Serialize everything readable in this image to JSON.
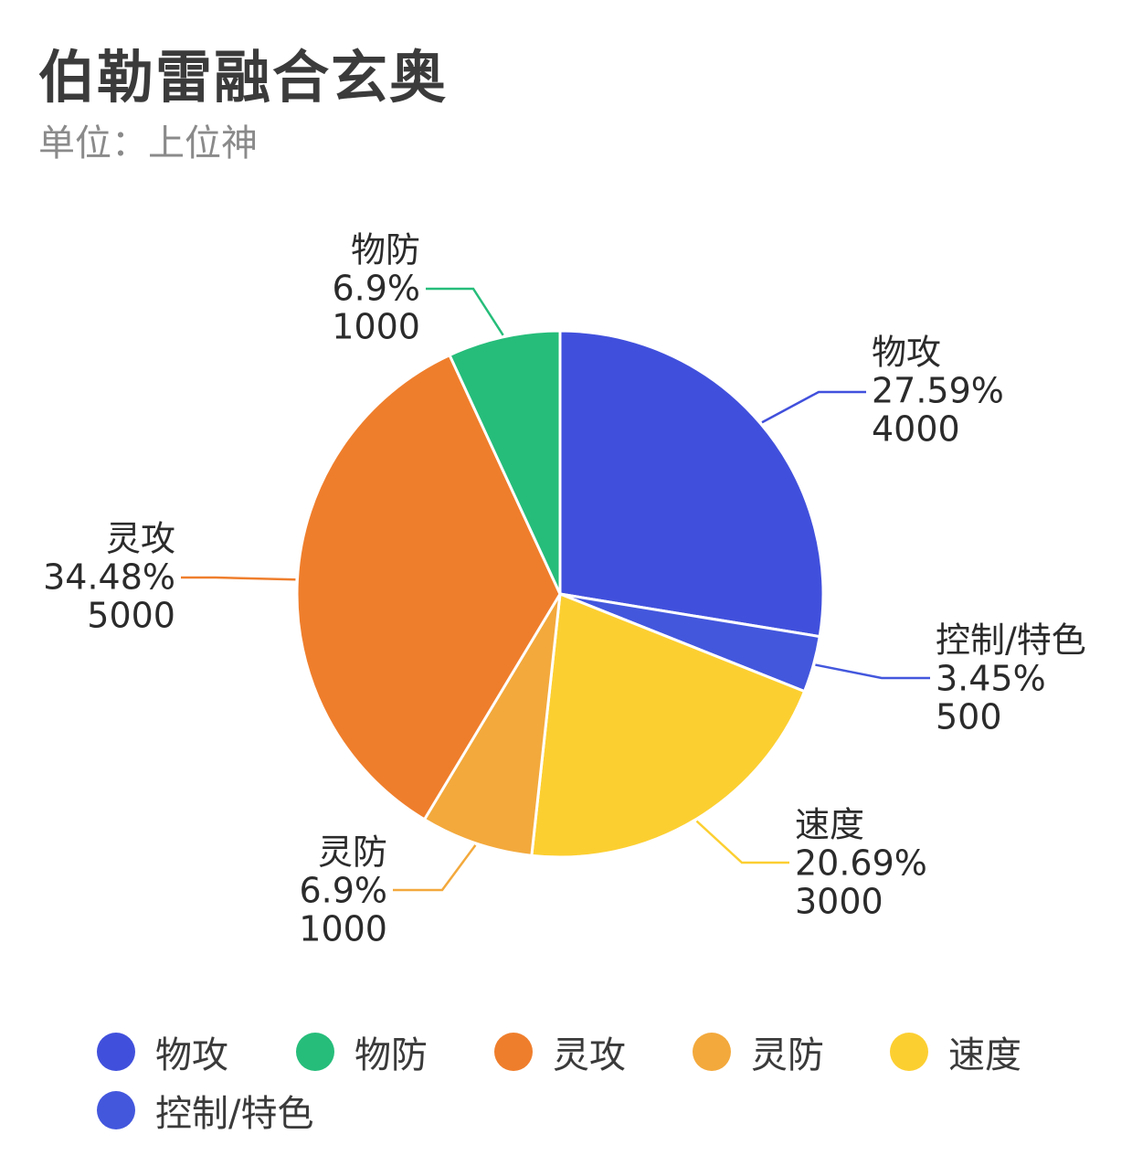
{
  "title": "伯勒雷融合玄奥",
  "subtitle": "单位：上位神",
  "chart_data": {
    "type": "pie",
    "slices": [
      {
        "name": "物攻",
        "value": 4000,
        "percent": "27.59%",
        "color": "#4150DC"
      },
      {
        "name": "控制/特色",
        "value": 500,
        "percent": "3.45%",
        "color": "#4357DD"
      },
      {
        "name": "速度",
        "value": 3000,
        "percent": "20.69%",
        "color": "#FCCF31"
      },
      {
        "name": "灵防",
        "value": 1000,
        "percent": "6.9%",
        "color": "#F3A93C"
      },
      {
        "name": "灵攻",
        "value": 5000,
        "percent": "34.48%",
        "color": "#EF7E2C"
      },
      {
        "name": "物防",
        "value": 1000,
        "percent": "6.9%",
        "color": "#26BD7A"
      }
    ],
    "legend": [
      {
        "name": "物攻",
        "color": "#4150DC"
      },
      {
        "name": "物防",
        "color": "#26BD7A"
      },
      {
        "name": "灵攻",
        "color": "#EF7E2C"
      },
      {
        "name": "灵防",
        "color": "#F3A93C"
      },
      {
        "name": "速度",
        "color": "#FCCF31"
      },
      {
        "name": "控制/特色",
        "color": "#4357DD"
      }
    ],
    "legend_position": "bottom"
  }
}
